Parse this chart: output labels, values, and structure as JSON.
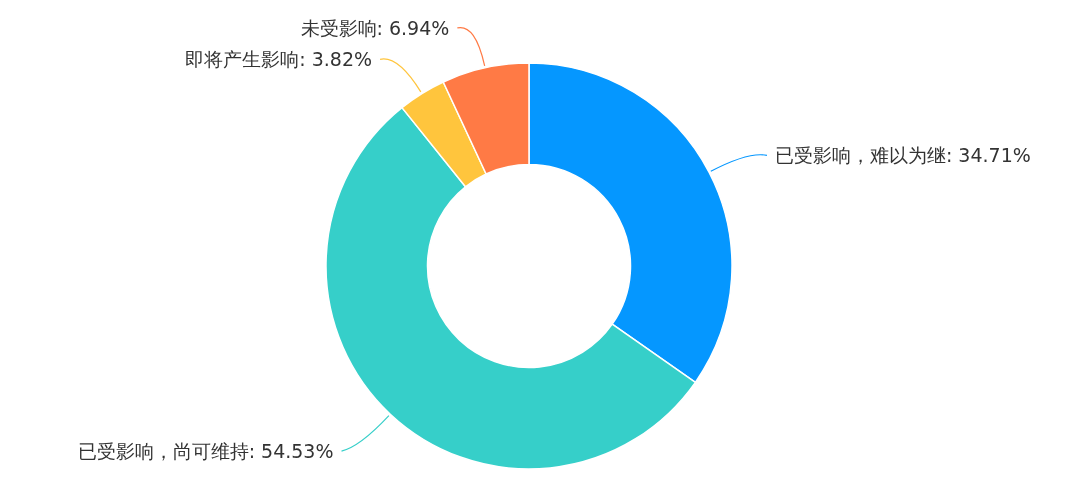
{
  "chart_data": {
    "type": "donut",
    "categories": [
      "已受影响，难以为继",
      "已受影响，尚可维持",
      "即将产生影响",
      "未受影响"
    ],
    "values": [
      34.71,
      54.53,
      3.82,
      6.94
    ],
    "colors": [
      "#0597ff",
      "#36cfc9",
      "#ffc53d",
      "#ff7a45"
    ],
    "value_labels": [
      "34.71%",
      "54.53%",
      "3.82%",
      "6.94%"
    ]
  }
}
